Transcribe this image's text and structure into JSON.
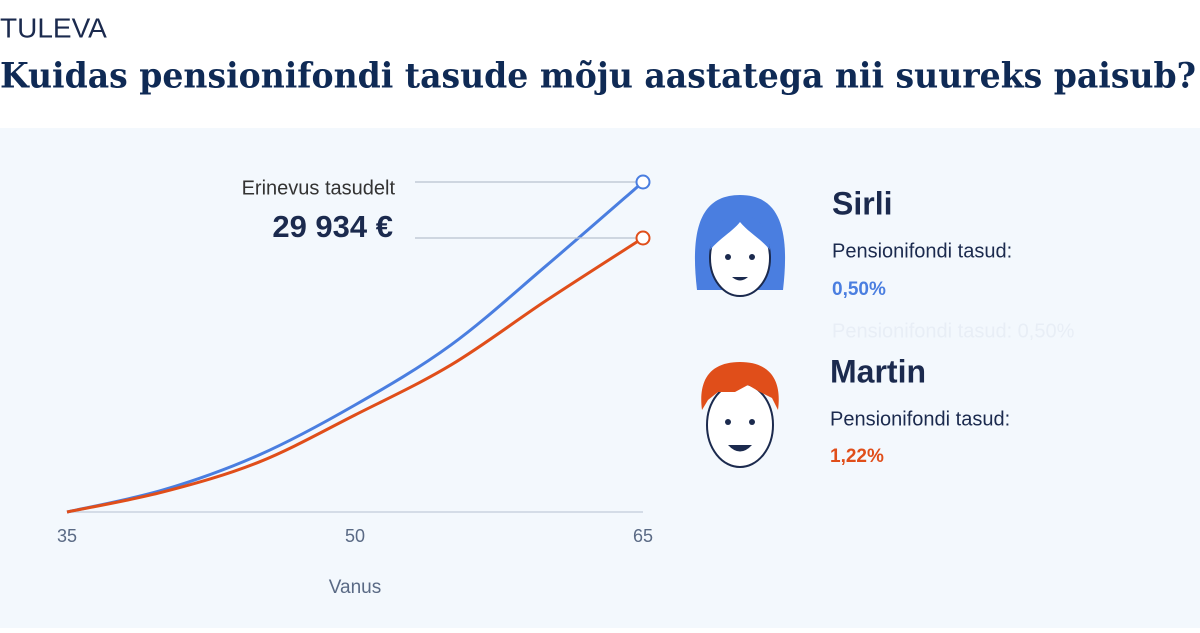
{
  "chart_data": {
    "type": "line",
    "brand": "TULEVA",
    "title": "Kuidas pensionifondi tasude mõju aastatega nii suureks paisub?",
    "x": [
      35,
      40,
      45,
      50,
      55,
      60,
      65
    ],
    "xlim": [
      35,
      65
    ],
    "xticks": [
      35,
      50,
      65
    ],
    "xlabel": "Vanus",
    "series": [
      {
        "name": "Sirli",
        "color": "#4a7ee0",
        "values": [
          0,
          11760,
          30470,
          57200,
          89300,
          132000,
          176400
        ],
        "fee_caption": "Pensionifondi tasud:",
        "fee": "0,50%",
        "ghost": "Pensionifondi tasud: 0,50%"
      },
      {
        "name": "Martin",
        "color": "#e04e1a",
        "values": [
          0,
          10700,
          26700,
          51850,
          78600,
          113300,
          146466
        ],
        "fee_caption": "Pensionifondi tasud:",
        "fee": "1,22%"
      }
    ],
    "annotation": {
      "text": "Erinevus tasudelt",
      "value_label": "29 934 €"
    }
  }
}
